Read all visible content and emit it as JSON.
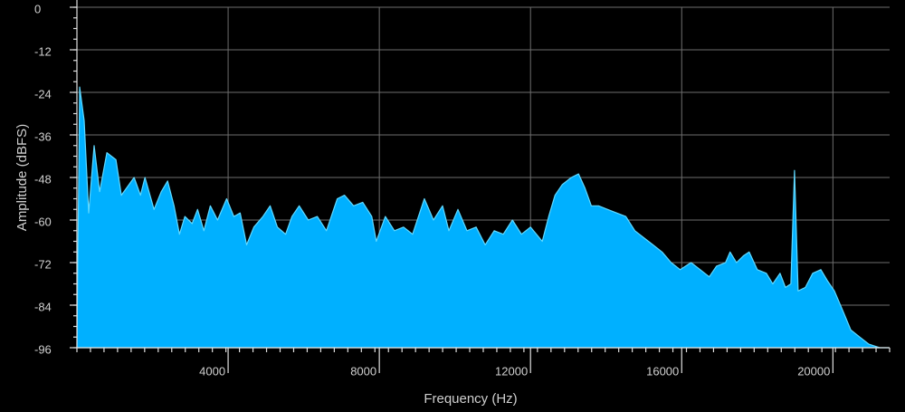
{
  "chart_data": {
    "type": "area",
    "x_label": "Frequency (Hz)",
    "y_label": "Amplitude (dBFS)",
    "x": [
      72,
      192,
      312,
      456,
      600,
      792,
      1032,
      1176,
      1512,
      1680,
      1800,
      2040,
      2232,
      2400,
      2568,
      2712,
      2856,
      3048,
      3192,
      3360,
      3528,
      3720,
      3960,
      4152,
      4320,
      4488,
      4680,
      4920,
      5112,
      5304,
      5520,
      5688,
      5880,
      6120,
      6360,
      6600,
      6888,
      7080,
      7320,
      7560,
      7800,
      7920,
      8160,
      8400,
      8640,
      8880,
      9192,
      9432,
      9672,
      9840,
      10080,
      10320,
      10560,
      10800,
      11040,
      11280,
      11520,
      11760,
      12000,
      12312,
      12480,
      12648,
      12840,
      13080,
      13272,
      13440,
      13608,
      13800,
      14040,
      14280,
      14520,
      14760,
      15000,
      15240,
      15480,
      15720,
      15960,
      16248,
      16488,
      16728,
      16920,
      17160,
      17280,
      17448,
      17640,
      17784,
      18000,
      18240,
      18408,
      18600,
      18744,
      18888,
      18984,
      19080,
      19272,
      19464,
      19680,
      19848,
      20040,
      20280,
      20472,
      20712,
      20952,
      21240,
      21480
    ],
    "series": [
      {
        "color": "#00b0ff",
        "values": [
          -22.5,
          -32,
          -58,
          -39,
          -52,
          -41,
          -43,
          -53,
          -48,
          -53,
          -48,
          -57,
          -52,
          -49,
          -56,
          -64,
          -59,
          -61,
          -57,
          -63,
          -56,
          -60,
          -54,
          -59,
          -58,
          -67,
          -62,
          -59,
          -56,
          -62,
          -64,
          -59,
          -56,
          -60,
          -59,
          -63,
          -54,
          -53,
          -56,
          -55,
          -59,
          -66,
          -59,
          -63,
          -62,
          -64,
          -54,
          -60,
          -56,
          -63,
          -57,
          -63,
          -62,
          -67,
          -63,
          -64,
          -60,
          -64,
          -62,
          -66,
          -59,
          -53,
          -50,
          -48,
          -47,
          -51,
          -56,
          -56,
          -57,
          -58,
          -59,
          -63,
          -65,
          -67,
          -69,
          -72,
          -74,
          -72,
          -74,
          -76,
          -73,
          -72,
          -69,
          -72,
          -70,
          -69,
          -74,
          -75,
          -78,
          -75,
          -79,
          -78,
          -46,
          -80,
          -79,
          -75,
          -74,
          -77,
          -80,
          -86,
          -91,
          -93,
          -95,
          -96,
          -96
        ]
      }
    ],
    "xlim": [
      0,
      21500
    ],
    "ylim": [
      -96,
      0
    ],
    "xticks": [
      4000,
      8000,
      12000,
      16000,
      20000
    ],
    "yticks": [
      0,
      -12,
      -24,
      -36,
      -48,
      -60,
      -72,
      -84,
      -96
    ],
    "grid": true
  }
}
